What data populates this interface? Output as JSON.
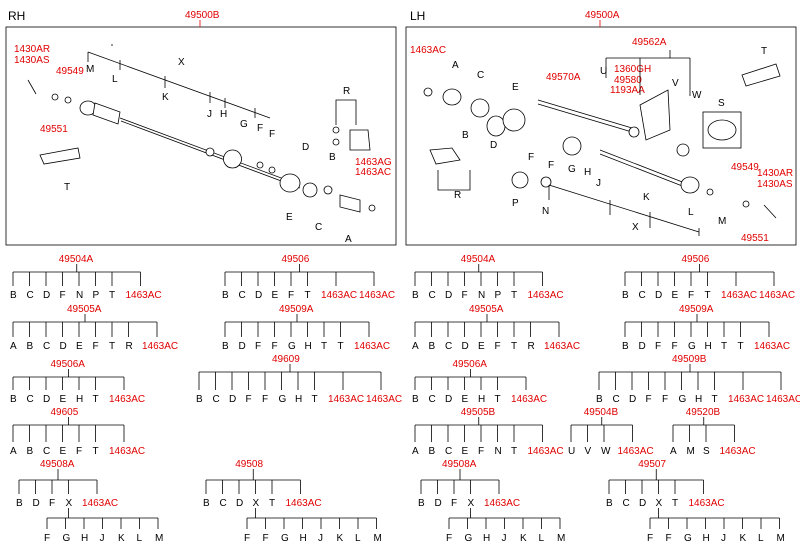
{
  "headers": {
    "rh": "RH",
    "lh": "LH"
  },
  "rh_panel": {
    "assembly": "49500B",
    "callouts": [
      "1430AR",
      "1430AS",
      "49549",
      "49551",
      "1463AG",
      "1463AC"
    ],
    "letters": [
      "X",
      "M",
      "L",
      "K",
      "J",
      "H",
      "G",
      "F",
      "F",
      "D",
      "B",
      "R",
      "E",
      "C",
      "A",
      "T"
    ]
  },
  "lh_panel": {
    "assembly": "49500A",
    "callouts": [
      "1463AC",
      "49562A",
      "49570A",
      "1360GH",
      "49580",
      "1193AA",
      "49549",
      "1430AR",
      "1430AS",
      "49551"
    ],
    "letters": [
      "T",
      "U",
      "V",
      "W",
      "S",
      "A",
      "C",
      "E",
      "B",
      "D",
      "F",
      "F",
      "R",
      "J",
      "G",
      "H",
      "P",
      "N",
      "K",
      "X",
      "L",
      "M"
    ]
  },
  "trees": [
    {
      "code": "49504A",
      "leaves": [
        "B",
        "C",
        "D",
        "F",
        "N",
        "P",
        "T",
        "1463AC"
      ]
    },
    {
      "code": "49506",
      "leaves": [
        "B",
        "C",
        "D",
        "E",
        "F",
        "T",
        "1463AC",
        "1463AC"
      ]
    },
    {
      "code": "49504A",
      "leaves": [
        "B",
        "C",
        "D",
        "F",
        "N",
        "P",
        "T",
        "1463AC"
      ]
    },
    {
      "code": "49506",
      "leaves": [
        "B",
        "C",
        "D",
        "E",
        "F",
        "T",
        "1463AC",
        "1463AC"
      ]
    },
    {
      "code": "49505A",
      "leaves": [
        "A",
        "B",
        "C",
        "D",
        "E",
        "F",
        "T",
        "R",
        "1463AC"
      ]
    },
    {
      "code": "49509A",
      "leaves": [
        "B",
        "D",
        "F",
        "F",
        "G",
        "H",
        "T",
        "T",
        "1463AC"
      ]
    },
    {
      "code": "49505A",
      "leaves": [
        "A",
        "B",
        "C",
        "D",
        "E",
        "F",
        "T",
        "R",
        "1463AC"
      ]
    },
    {
      "code": "49509A",
      "leaves": [
        "B",
        "D",
        "F",
        "F",
        "G",
        "H",
        "T",
        "T",
        "1463AC"
      ]
    },
    {
      "code": "49506A",
      "leaves": [
        "B",
        "C",
        "D",
        "E",
        "H",
        "T",
        "1463AC"
      ]
    },
    {
      "code": "49609",
      "leaves": [
        "B",
        "C",
        "D",
        "F",
        "F",
        "G",
        "H",
        "T",
        "1463AC",
        "1463AC"
      ]
    },
    {
      "code": "49506A",
      "leaves": [
        "B",
        "C",
        "D",
        "E",
        "H",
        "T",
        "1463AC"
      ]
    },
    {
      "code": "49509B",
      "leaves": [
        "B",
        "C",
        "D",
        "F",
        "F",
        "G",
        "H",
        "T",
        "1463AC",
        "1463AC"
      ]
    },
    {
      "code": "49605",
      "leaves": [
        "A",
        "B",
        "C",
        "E",
        "F",
        "T",
        "1463AC"
      ]
    },
    {
      "code": "49505B",
      "leaves": [
        "A",
        "B",
        "C",
        "E",
        "F",
        "N",
        "T",
        "1463AC"
      ]
    },
    {
      "code": "49504B",
      "leaves": [
        "U",
        "V",
        "W",
        "1463AC"
      ]
    },
    {
      "code": "49520B",
      "leaves": [
        "A",
        "M",
        "S",
        "1463AC"
      ]
    },
    {
      "code": "49508A",
      "leaves": [
        "B",
        "D",
        "F",
        "X",
        "1463AC"
      ],
      "sub": [
        "F",
        "G",
        "H",
        "J",
        "K",
        "L",
        "M"
      ]
    },
    {
      "code": "49508",
      "leaves": [
        "B",
        "C",
        "D",
        "X",
        "T",
        "1463AC"
      ],
      "sub": [
        "F",
        "F",
        "G",
        "H",
        "J",
        "K",
        "L",
        "M"
      ]
    },
    {
      "code": "49508A",
      "leaves": [
        "B",
        "D",
        "F",
        "X",
        "1463AC"
      ],
      "sub": [
        "F",
        "G",
        "H",
        "J",
        "K",
        "L",
        "M"
      ]
    },
    {
      "code": "49507",
      "leaves": [
        "B",
        "C",
        "D",
        "X",
        "T",
        "1463AC"
      ],
      "sub": [
        "F",
        "F",
        "G",
        "H",
        "J",
        "K",
        "L",
        "M"
      ]
    }
  ]
}
